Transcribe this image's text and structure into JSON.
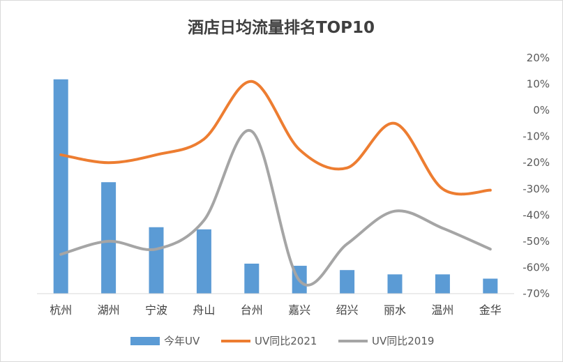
{
  "chart_data": {
    "type": "bar",
    "title": "酒店日均流量排名TOP10",
    "categories": [
      "杭州",
      "湖州",
      "宁波",
      "舟山",
      "台州",
      "嘉兴",
      "绍兴",
      "丽水",
      "温州",
      "金华"
    ],
    "series": [
      {
        "name": "今年UV",
        "type": "bar",
        "axis": "left",
        "color": "#5b9bd5",
        "values": [
          100,
          52,
          31,
          30,
          14,
          13,
          11,
          9,
          9,
          7
        ]
      },
      {
        "name": "UV同比2021",
        "type": "line",
        "smooth": true,
        "axis": "right",
        "color": "#ed7d31",
        "values": [
          -17,
          -20,
          -17,
          -11,
          11,
          -15,
          -22,
          -5,
          -30,
          -30.5
        ]
      },
      {
        "name": "UV同比2019",
        "type": "line",
        "smooth": true,
        "axis": "right",
        "color": "#a5a5a5",
        "values": [
          -55,
          -50,
          -53,
          -42,
          -8,
          -65,
          -51,
          -38.5,
          -45,
          -53
        ]
      }
    ],
    "y_left": {
      "range": [
        0,
        110
      ],
      "tick_labels_shown": false
    },
    "y_right": {
      "range": [
        -70,
        20
      ],
      "ticks": [
        20,
        10,
        0,
        -10,
        -20,
        -30,
        -40,
        -50,
        -60,
        -70
      ],
      "tick_labels": [
        "20%",
        "10%",
        "0%",
        "-10%",
        "-20%",
        "-30%",
        "-40%",
        "-50%",
        "-60%",
        "-70%"
      ]
    },
    "grid": false,
    "legend": "bottom"
  }
}
